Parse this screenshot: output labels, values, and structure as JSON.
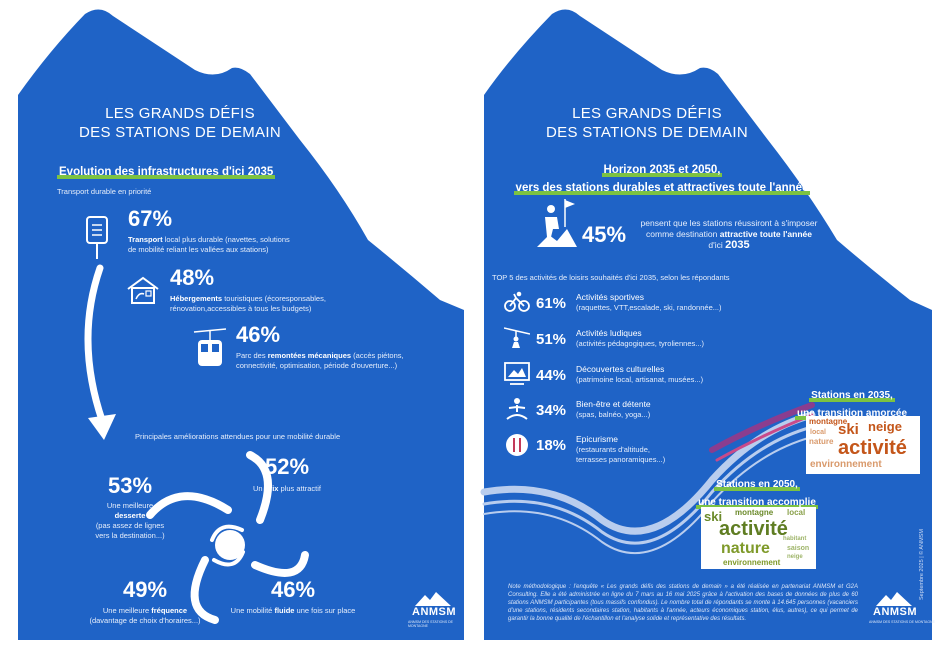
{
  "left": {
    "title_line1": "LES GRANDS DÉFIS",
    "title_line2": "DES STATIONS DE DEMAIN",
    "section_heading": "Evolution des infrastructures d'ici 2035",
    "transport_label": "Transport durable en priorité",
    "items": [
      {
        "pct": "67%",
        "bold": "Transport",
        "text": " local plus durable (navettes, solutions",
        "text2": "de mobilité reliant les vallées aux stations)"
      },
      {
        "pct": "48%",
        "bold": "Hébergements",
        "text": " touristiques (écoresponsables,",
        "text2": "rénovation,accessibles à tous les budgets)"
      },
      {
        "pct": "46%",
        "pre": "Parc des ",
        "bold": "remontées mécaniques",
        "text": " (accès piétons,",
        "text2": "connectivité, optimisation, période d'ouverture...)"
      }
    ],
    "mobility_label": "Principales améliorations attendues pour une mobilité durable",
    "mobility": [
      {
        "pct": "53%",
        "l1": "Une meilleure",
        "bold": "desserte",
        "l3": "(pas assez de lignes",
        "l4": "vers la destination...)"
      },
      {
        "pct": "52%",
        "pre": "Un ",
        "bold": "prix",
        "post": " plus attractif"
      },
      {
        "pct": "49%",
        "pre": "Une meilleure ",
        "bold": "fréquence",
        "l2": "(davantage de choix d'horaires...)"
      },
      {
        "pct": "46%",
        "pre": "Une mobilité ",
        "bold": "fluide",
        "post": " une fois sur place"
      }
    ],
    "logo": "ANMSM",
    "logo_sub": "ANMSM DES STATIONS DE MONTAGNE"
  },
  "right": {
    "title_line1": "LES GRANDS DÉFIS",
    "title_line2": "DES STATIONS DE DEMAIN",
    "heading_line1": "Horizon 2035 et 2050,",
    "heading_line2": "vers des stations durables et attractives toute l'année",
    "hero_pct": "45%",
    "hero_l1": "pensent que les stations réussiront à s'imposer",
    "hero_l2_pre": "comme destination ",
    "hero_l2_bold": "attractive toute l'année",
    "hero_l3_pre": "d'ici ",
    "hero_l3_bold": "2035",
    "top5_label": "TOP 5 des activités de loisirs souhaités d'ici 2035, selon les répondants",
    "activities": [
      {
        "pct": "61%",
        "label": "Activités sportives",
        "sub": "(raquettes, VTT,escalade, ski, randonnée...)",
        "icon": "bike-icon"
      },
      {
        "pct": "51%",
        "label": "Activités ludiques",
        "sub": "(activités pédagogiques, tyroliennes...)",
        "icon": "zipline-icon"
      },
      {
        "pct": "44%",
        "label": "Découvertes culturelles",
        "sub": "(patrimoine local, artisanat, musées...)",
        "icon": "museum-icon"
      },
      {
        "pct": "34%",
        "label": "Bien-être et détente",
        "sub": "(spas, balnéo, yoga...)",
        "icon": "yoga-icon"
      },
      {
        "pct": "18%",
        "label": "Epicurisme",
        "sub": "(restaurants d'altitude,",
        "sub2": "terrasses panoramiques...)",
        "icon": "dining-icon"
      }
    ],
    "st2035_l1": "Stations en 2035,",
    "st2035_l2": "une transition amorcée",
    "st2050_l1": "Stations en 2050,",
    "st2050_l2": "une transition accomplie",
    "cloud2035": [
      "montagne",
      "ski",
      "neige",
      "local",
      "nature",
      "activité",
      "environnement"
    ],
    "cloud2050": [
      "ski",
      "montagne",
      "local",
      "activité",
      "nature",
      "habitant",
      "saison",
      "environnement",
      "neige"
    ],
    "note": "Note méthodologique : l'enquête « Les grands défis des stations de demain » a été réalisée en partenariat ANMSM et G2A Consulting. Elle a été administrée en ligne du 7 mars au 16 mai 2025 grâce à l'activation des bases de données de plus de 60 stations ANMSM participantes (tous massifs confondus). Le nombre total de répondants se monte à 14.645 personnes (vacanciers d'une stations, résidents secondaires station, habitants à l'année, acteurs économiques station, élus, autres), ce qui permet de garantir la bonne qualité de l'échantillon et l'analyse solide et représentative des résultats.",
    "vertical": "Septembre 2025 | © ANMSM",
    "logo": "ANMSM",
    "logo_sub": "ANMSM DES STATIONS DE MONTAGNE"
  },
  "colors": {
    "blue": "#1f63c6",
    "green": "#7cc242",
    "pink": "#d63c8a",
    "orange": "#c4561a",
    "olive": "#7f9a2a"
  }
}
